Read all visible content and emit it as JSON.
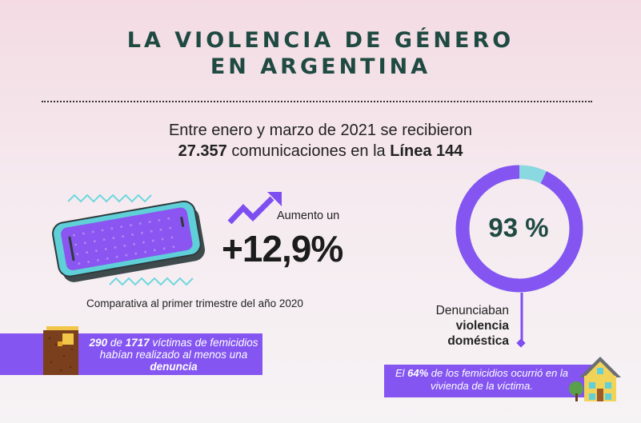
{
  "title": {
    "line1": "LA VIOLENCIA DE GÉNERO",
    "line2": "EN ARGENTINA"
  },
  "intro": {
    "line1": "Entre enero y marzo de 2021 se recibieron",
    "count": "27.357",
    "mid": " comunicaciones en la ",
    "line_name": "Línea 144"
  },
  "increase": {
    "label": "Aumento un",
    "value": "+12,9%",
    "comparison": "Comparativa al primer trimestre del año 2020"
  },
  "complaint": {
    "value_label": "93 %",
    "percent": 93,
    "line1": "Denunciaban",
    "line2": "violencia",
    "line3": "doméstica"
  },
  "femicides": {
    "n1": "290",
    "t1": " de ",
    "n2": "1717",
    "t2": " víctimas de femicidios habían realizado al menos una ",
    "t3": "denuncia"
  },
  "home": {
    "t1": "El ",
    "pct": "64%",
    "t2": " de los femicidios ocurrió en la vivienda de la víctima."
  },
  "colors": {
    "title": "#1f4a41",
    "purple": "#8455f0",
    "donut_rest": "#8ad8e0",
    "phone_screen": "#8a55f0",
    "phone_frame": "#5fcfd8"
  }
}
